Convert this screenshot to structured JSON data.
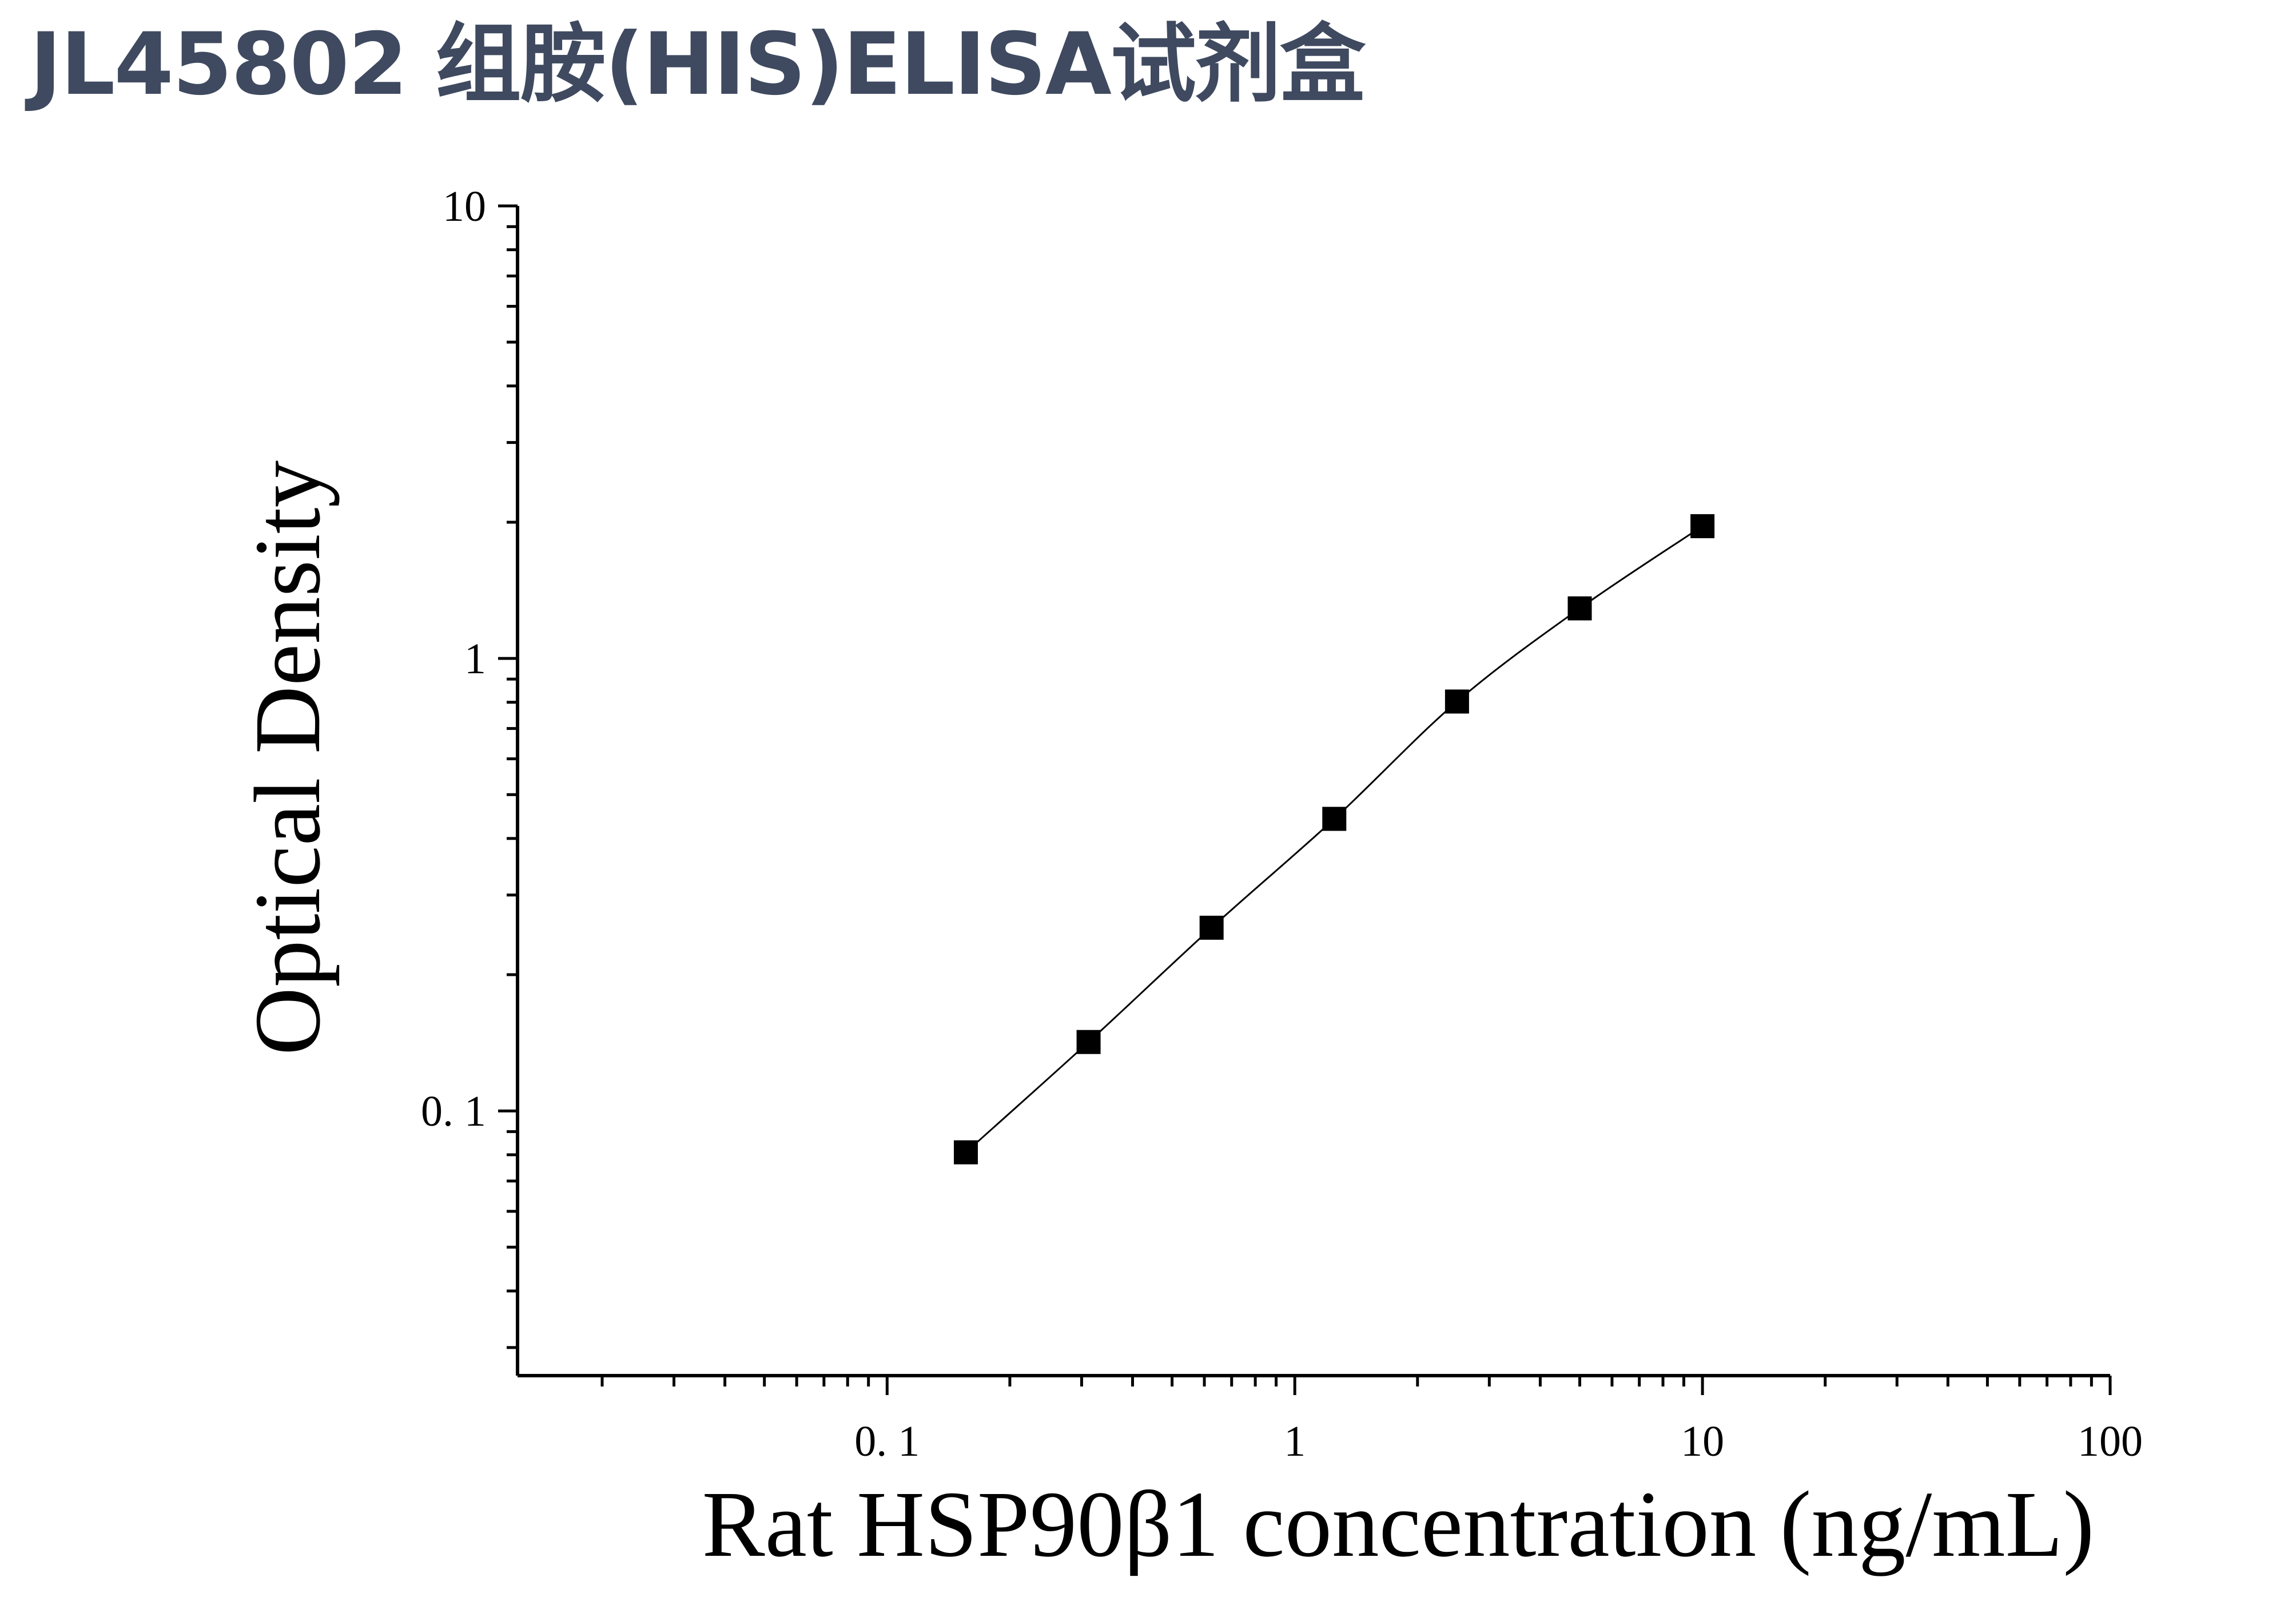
{
  "page": {
    "title": "JL45802 组胺(HIS)ELISA试剂盒"
  },
  "chart_data": {
    "type": "scatter",
    "x_scale": "log",
    "y_scale": "log",
    "xlim": [
      0.0124,
      100
    ],
    "ylim": [
      0.026,
      10
    ],
    "xlabel": "Rat HSP90β1 concentration (ng/mL)",
    "ylabel": "Optical Density",
    "x_ticks": [
      {
        "value": 0.1,
        "label": "0. 1"
      },
      {
        "value": 1,
        "label": "1"
      },
      {
        "value": 10,
        "label": "10"
      },
      {
        "value": 100,
        "label": "100"
      }
    ],
    "y_ticks": [
      {
        "value": 0.1,
        "label": "0. 1"
      },
      {
        "value": 1,
        "label": "1"
      },
      {
        "value": 10,
        "label": "10"
      }
    ],
    "series": [
      {
        "marker": "square",
        "color": "#000000",
        "fit_line": true,
        "x": [
          0.156,
          0.312,
          0.625,
          1.25,
          2.5,
          5,
          10
        ],
        "y": [
          0.081,
          0.142,
          0.254,
          0.442,
          0.803,
          1.29,
          1.96
        ]
      }
    ],
    "grid": false,
    "legend": "none"
  }
}
